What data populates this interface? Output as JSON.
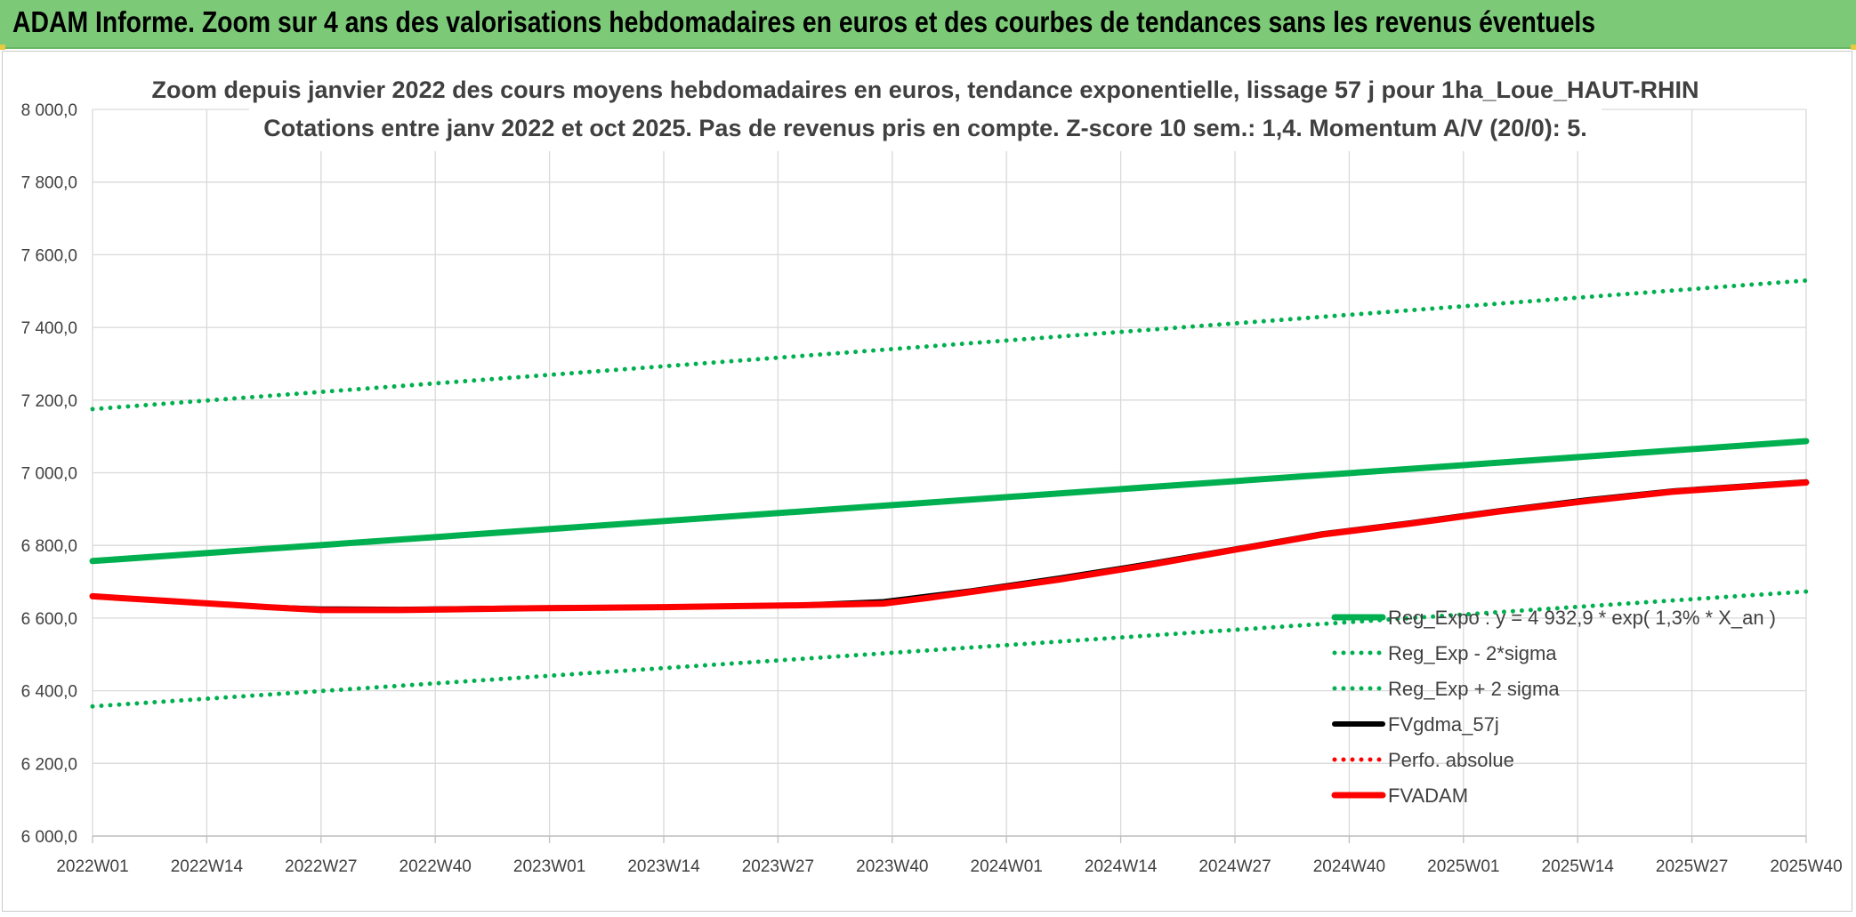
{
  "header": {
    "title": "ADAM Informe. Zoom sur 4 ans des valorisations hebdomadaires en euros et des courbes de tendances sans les revenus éventuels"
  },
  "chart_data": {
    "type": "line",
    "title": "Zoom depuis janvier 2022 des cours moyens hebdomadaires en euros, tendance exponentielle, lissage 57 j pour 1ha_Loue_HAUT-RHIN",
    "subtitle": "Cotations entre janv 2022 et oct 2025. Pas de revenus pris en compte. Z-score 10 sem.: 1,4. Momentum A/V (20/0): 5.",
    "xlabel": "",
    "ylabel": "",
    "x_ticks": [
      "2022W01",
      "2022W14",
      "2022W27",
      "2022W40",
      "2023W01",
      "2023W14",
      "2023W27",
      "2023W40",
      "2024W01",
      "2024W14",
      "2024W27",
      "2024W40",
      "2025W01",
      "2025W14",
      "2025W27",
      "2025W40"
    ],
    "y_ticks": [
      "8 000,0",
      "7 800,0",
      "7 600,0",
      "7 400,0",
      "7 200,0",
      "7 000,0",
      "6 800,0",
      "6 600,0",
      "6 400,0",
      "6 200,0",
      "6 000,0"
    ],
    "ylim": [
      6000,
      8000
    ],
    "grid": true,
    "legend_position": "bottom-right",
    "x_week_index_range": [
      0,
      195
    ],
    "series": [
      {
        "name": "Reg_Expo : y = 4 932,9 * exp( 1,3% * X_an )",
        "color": "#00b050",
        "style": "solid-thick",
        "x": [
          0,
          195
        ],
        "y": [
          6757,
          7087
        ]
      },
      {
        "name": "Reg_Exp - 2*sigma",
        "color": "#00b050",
        "style": "dotted",
        "x": [
          0,
          195
        ],
        "y": [
          6357,
          6673
        ]
      },
      {
        "name": "Reg_Exp + 2 sigma",
        "color": "#00b050",
        "style": "dotted",
        "x": [
          0,
          195
        ],
        "y": [
          7175,
          7529
        ]
      },
      {
        "name": "FVgdma_57j",
        "color": "#000000",
        "style": "solid",
        "x": [
          0,
          10,
          20,
          26,
          35,
          50,
          65,
          80,
          90,
          95,
          100,
          110,
          120,
          130,
          140,
          150,
          160,
          170,
          180,
          195
        ],
        "y": [
          6660,
          6645,
          6630,
          6625,
          6624,
          6628,
          6630,
          6635,
          6645,
          6660,
          6675,
          6710,
          6748,
          6790,
          6832,
          6862,
          6895,
          6925,
          6950,
          6975
        ]
      },
      {
        "name": "Perfo. absolue",
        "color": "#ff0000",
        "style": "dotted",
        "x": [],
        "y": []
      },
      {
        "name": "FVADAM",
        "color": "#ff0000",
        "style": "solid-thick",
        "x": [
          0,
          10,
          20,
          26,
          35,
          50,
          65,
          80,
          90,
          95,
          100,
          110,
          120,
          130,
          140,
          150,
          160,
          170,
          180,
          195
        ],
        "y": [
          6660,
          6645,
          6630,
          6622,
          6622,
          6627,
          6630,
          6635,
          6640,
          6655,
          6672,
          6706,
          6745,
          6788,
          6830,
          6860,
          6893,
          6922,
          6948,
          6973
        ]
      }
    ]
  }
}
